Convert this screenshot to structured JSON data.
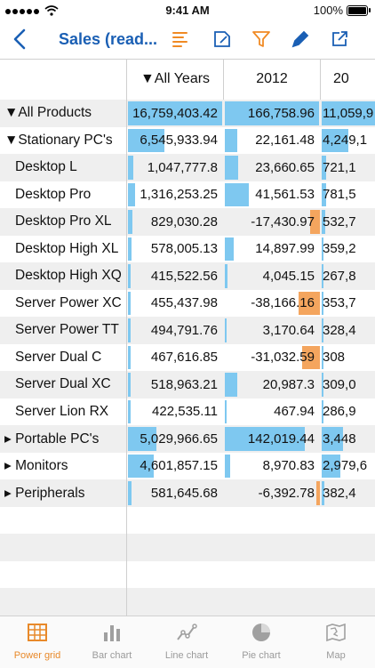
{
  "status_bar": {
    "time": "9:41 AM",
    "battery": "100%"
  },
  "nav": {
    "title": "Sales (read..."
  },
  "grid": {
    "columns": [
      "▼All Years",
      "2012",
      "20"
    ],
    "rows": [
      {
        "label": "▼All Products",
        "values": [
          "16,759,403.42",
          "166,758.96",
          "11,059,9"
        ],
        "bars": [
          1.0,
          1.0,
          1.0
        ],
        "signs": [
          "pos",
          "pos",
          "pos"
        ]
      },
      {
        "label": "▼Stationary PC's",
        "values": [
          "6,545,933.94",
          "22,161.48",
          "4,249,1"
        ],
        "bars": [
          0.39,
          0.13,
          0.38
        ],
        "signs": [
          "pos",
          "pos",
          "pos"
        ]
      },
      {
        "label": "Desktop L",
        "values": [
          "1,047,777.8",
          "23,660.65",
          "721,1"
        ],
        "bars": [
          0.06,
          0.14,
          0.07
        ],
        "signs": [
          "pos",
          "pos",
          "pos"
        ]
      },
      {
        "label": "Desktop Pro",
        "values": [
          "1,316,253.25",
          "41,561.53",
          "781,5"
        ],
        "bars": [
          0.08,
          0.25,
          0.07
        ],
        "signs": [
          "pos",
          "pos",
          "pos"
        ]
      },
      {
        "label": "Desktop Pro XL",
        "values": [
          "829,030.28",
          "-17,430.97",
          "532,7"
        ],
        "bars": [
          0.05,
          0.1,
          0.05
        ],
        "signs": [
          "pos",
          "neg",
          "pos"
        ]
      },
      {
        "label": "Desktop High XL",
        "values": [
          "578,005.13",
          "14,897.99",
          "359,2"
        ],
        "bars": [
          0.035,
          0.09,
          0.03
        ],
        "signs": [
          "pos",
          "pos",
          "pos"
        ]
      },
      {
        "label": "Desktop High XQ",
        "values": [
          "415,522.56",
          "4,045.15",
          "267,8"
        ],
        "bars": [
          0.025,
          0.024,
          0.024
        ],
        "signs": [
          "pos",
          "pos",
          "pos"
        ]
      },
      {
        "label": "Server Power XC",
        "values": [
          "455,437.98",
          "-38,166.16",
          "353,7"
        ],
        "bars": [
          0.027,
          0.23,
          0.03
        ],
        "signs": [
          "pos",
          "neg",
          "pos"
        ]
      },
      {
        "label": "Server Power TT",
        "values": [
          "494,791.76",
          "3,170.64",
          "328,4"
        ],
        "bars": [
          0.03,
          0.019,
          0.03
        ],
        "signs": [
          "pos",
          "pos",
          "pos"
        ]
      },
      {
        "label": "Server Dual C",
        "values": [
          "467,616.85",
          "-31,032.59",
          "308"
        ],
        "bars": [
          0.028,
          0.19,
          0.028
        ],
        "signs": [
          "pos",
          "neg",
          "pos"
        ]
      },
      {
        "label": "Server Dual XC",
        "values": [
          "518,963.21",
          "20,987.3",
          "309,0"
        ],
        "bars": [
          0.031,
          0.13,
          0.028
        ],
        "signs": [
          "pos",
          "pos",
          "pos"
        ]
      },
      {
        "label": "Server Lion RX",
        "values": [
          "422,535.11",
          "467.94",
          "286,9"
        ],
        "bars": [
          0.025,
          0.003,
          0.026
        ],
        "signs": [
          "pos",
          "pos",
          "pos"
        ]
      },
      {
        "label": "▸ Portable PC's",
        "values": [
          "5,029,966.65",
          "142,019.44",
          "3,448"
        ],
        "bars": [
          0.3,
          0.85,
          0.31
        ],
        "signs": [
          "pos",
          "pos",
          "pos"
        ]
      },
      {
        "label": "▸ Monitors",
        "values": [
          "4,601,857.15",
          "8,970.83",
          "2,979,6"
        ],
        "bars": [
          0.27,
          0.054,
          0.27
        ],
        "signs": [
          "pos",
          "pos",
          "pos"
        ]
      },
      {
        "label": "▸ Peripherals",
        "values": [
          "581,645.68",
          "-6,392.78",
          "382,4"
        ],
        "bars": [
          0.035,
          0.04,
          0.035
        ],
        "signs": [
          "pos",
          "neg",
          "pos"
        ]
      }
    ]
  },
  "tabs": [
    {
      "label": "Power grid",
      "icon": "grid-icon",
      "active": true
    },
    {
      "label": "Bar chart",
      "icon": "bar-chart-icon",
      "active": false
    },
    {
      "label": "Line chart",
      "icon": "line-chart-icon",
      "active": false
    },
    {
      "label": "Pie chart",
      "icon": "pie-chart-icon",
      "active": false
    },
    {
      "label": "Map",
      "icon": "map-icon",
      "active": false
    }
  ],
  "colors": {
    "accent": "#1a5fb4",
    "active_tab": "#e8892a",
    "positive_bar": "#7ec8f0",
    "negative_bar": "#f4a55e"
  }
}
